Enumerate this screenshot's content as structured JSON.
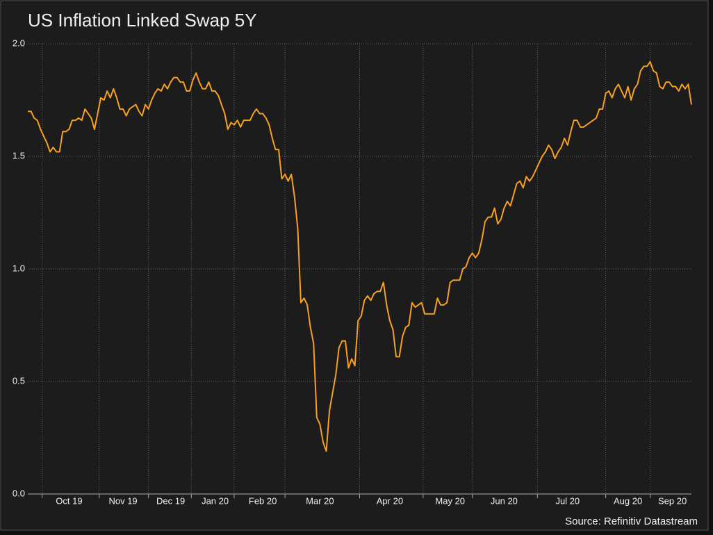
{
  "chart_data": {
    "type": "line",
    "title": "US Inflation Linked Swap 5Y",
    "source": "Source: Refinitiv Datastream",
    "categories": [
      null,
      null,
      null,
      null,
      null,
      null,
      null,
      null,
      null,
      null,
      null,
      null,
      null,
      "Oct 19",
      null,
      null,
      null,
      null,
      null,
      null,
      null,
      null,
      null,
      null,
      null,
      null,
      null,
      null,
      null,
      null,
      "Nov 19",
      null,
      null,
      null,
      null,
      null,
      null,
      null,
      null,
      null,
      null,
      null,
      null,
      null,
      null,
      "Dec 19",
      null,
      null,
      null,
      null,
      null,
      null,
      null,
      null,
      null,
      null,
      null,
      null,
      null,
      "Jan 20",
      null,
      null,
      null,
      null,
      null,
      null,
      null,
      null,
      null,
      null,
      null,
      null,
      null,
      null,
      "Feb 20",
      null,
      null,
      null,
      null,
      null,
      null,
      null,
      null,
      null,
      null,
      null,
      null,
      null,
      null,
      null,
      null,
      null,
      "Mar 20",
      null,
      null,
      null,
      null,
      null,
      null,
      null,
      null,
      null,
      null,
      null,
      null,
      null,
      null,
      null,
      null,
      null,
      null,
      null,
      null,
      null,
      "Apr 20",
      null,
      null,
      null,
      null,
      null,
      null,
      null,
      null,
      null,
      null,
      null,
      null,
      null,
      null,
      null,
      null,
      null,
      null,
      "May 20",
      null,
      null,
      null,
      null,
      null,
      null,
      null,
      null,
      null,
      null,
      null,
      null,
      null,
      null,
      null,
      null,
      "Jun 20",
      null,
      null,
      null,
      null,
      null,
      null,
      null,
      null,
      null,
      null,
      null,
      null,
      null,
      null,
      null,
      null,
      null,
      null,
      null,
      "Jul 20",
      null,
      null,
      null,
      null,
      null,
      null,
      null,
      null,
      null,
      null,
      null,
      null,
      null,
      null,
      null,
      null,
      null,
      null,
      "Aug 20",
      null,
      null,
      null,
      null,
      null,
      null,
      null,
      null,
      null,
      null,
      null,
      null,
      null,
      "Sep 20",
      null,
      null,
      null,
      null,
      null,
      null
    ],
    "series": [
      {
        "name": "US Inflation Linked Swap 5Y",
        "color": "#f7a11d",
        "values": [
          1.7,
          1.7,
          1.67,
          1.66,
          1.62,
          1.59,
          1.56,
          1.52,
          1.54,
          1.52,
          1.52,
          1.61,
          1.61,
          1.62,
          1.66,
          1.66,
          1.67,
          1.66,
          1.71,
          1.69,
          1.67,
          1.62,
          1.69,
          1.76,
          1.75,
          1.79,
          1.76,
          1.8,
          1.76,
          1.71,
          1.71,
          1.68,
          1.71,
          1.72,
          1.73,
          1.7,
          1.68,
          1.73,
          1.71,
          1.75,
          1.78,
          1.8,
          1.79,
          1.82,
          1.8,
          1.83,
          1.85,
          1.85,
          1.83,
          1.83,
          1.79,
          1.79,
          1.84,
          1.87,
          1.83,
          1.8,
          1.8,
          1.83,
          1.79,
          1.79,
          1.77,
          1.73,
          1.69,
          1.62,
          1.65,
          1.64,
          1.66,
          1.63,
          1.66,
          1.66,
          1.66,
          1.69,
          1.71,
          1.69,
          1.69,
          1.67,
          1.64,
          1.58,
          1.53,
          1.53,
          1.4,
          1.42,
          1.39,
          1.42,
          1.32,
          1.18,
          0.85,
          0.87,
          0.84,
          0.74,
          0.67,
          0.34,
          0.31,
          0.23,
          0.19,
          0.37,
          0.45,
          0.53,
          0.65,
          0.68,
          0.68,
          0.56,
          0.6,
          0.57,
          0.77,
          0.79,
          0.86,
          0.88,
          0.86,
          0.89,
          0.9,
          0.9,
          0.94,
          0.84,
          0.77,
          0.73,
          0.61,
          0.61,
          0.7,
          0.74,
          0.75,
          0.85,
          0.83,
          0.84,
          0.85,
          0.8,
          0.8,
          0.8,
          0.8,
          0.87,
          0.84,
          0.84,
          0.85,
          0.94,
          0.95,
          0.95,
          0.95,
          1.0,
          1.01,
          1.05,
          1.07,
          1.05,
          1.07,
          1.13,
          1.21,
          1.23,
          1.23,
          1.27,
          1.2,
          1.22,
          1.27,
          1.3,
          1.28,
          1.33,
          1.38,
          1.39,
          1.36,
          1.41,
          1.39,
          1.41,
          1.44,
          1.47,
          1.5,
          1.52,
          1.55,
          1.53,
          1.49,
          1.52,
          1.54,
          1.58,
          1.55,
          1.61,
          1.66,
          1.66,
          1.63,
          1.63,
          1.64,
          1.65,
          1.66,
          1.67,
          1.71,
          1.71,
          1.78,
          1.79,
          1.76,
          1.8,
          1.82,
          1.79,
          1.76,
          1.81,
          1.75,
          1.8,
          1.82,
          1.88,
          1.9,
          1.9,
          1.92,
          1.88,
          1.87,
          1.81,
          1.8,
          1.83,
          1.83,
          1.81,
          1.81,
          1.79,
          1.82,
          1.8,
          1.82,
          1.73
        ]
      }
    ],
    "ylim": [
      0,
      2
    ],
    "yticks": [
      {
        "value": 0,
        "label": "0.0"
      },
      0.5,
      {
        "value": 1,
        "label": "1.0"
      },
      1.5,
      {
        "value": 2,
        "label": "2.0"
      }
    ],
    "grid": true
  }
}
